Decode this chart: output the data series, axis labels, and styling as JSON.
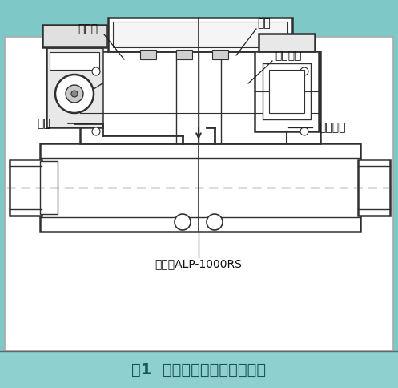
{
  "title": "图1  改造前定位器安装示意图",
  "title_bg": "#8ecfcf",
  "title_color": "#1a5555",
  "title_fontsize": 14,
  "outer_bg": "#7ec8c8",
  "inner_bg": "#ffffff",
  "draw_color": "#303030",
  "dashed_color": "#505050",
  "labels": {
    "dingweqi": "定位器",
    "zhijia": "支架",
    "yiduanlie": "易断裂处",
    "qiyuan": "气源",
    "songdong": "松动部位",
    "jiaoxingcheng": "角行程ALP-1000RS"
  }
}
